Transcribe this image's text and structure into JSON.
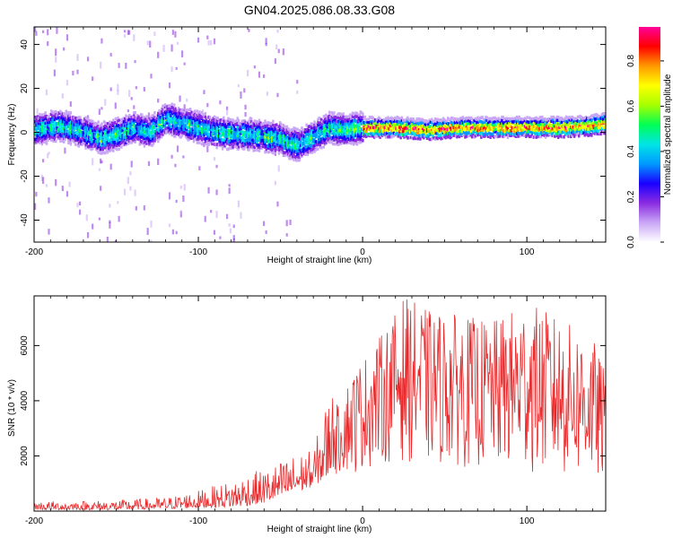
{
  "chart_data": [
    {
      "type": "heatmap",
      "title": "GN04.2025.086.08.33.G08",
      "xlabel": "Height of straight line (km)",
      "ylabel": "Frequency (Hz)",
      "xlim": [
        -200,
        148
      ],
      "ylim": [
        -50,
        48
      ],
      "xticks": [
        -200,
        -100,
        0,
        100
      ],
      "yticks": [
        -40,
        -20,
        0,
        20,
        40
      ],
      "colorbar": {
        "label": "Normalized spectral amplitude",
        "range": [
          0,
          0.95
        ],
        "ticks": [
          0.0,
          0.2,
          0.4,
          0.6,
          0.8
        ],
        "colors": [
          "#ffffff",
          "#c9a6f5",
          "#8a2be2",
          "#1a00ff",
          "#0099ff",
          "#00e5e5",
          "#00ff55",
          "#a6ff00",
          "#ffff00",
          "#ff9900",
          "#ff0000",
          "#ff0099"
        ]
      },
      "ridge": {
        "x": [
          -200,
          -185,
          -170,
          -160,
          -150,
          -140,
          -130,
          -120,
          -110,
          -100,
          -90,
          -80,
          -70,
          -60,
          -50,
          -45,
          -40,
          -35,
          -30,
          -25,
          -20,
          -15,
          -10,
          0,
          20,
          40,
          60,
          80,
          100,
          120,
          140,
          148
        ],
        "freq": [
          1,
          3,
          0,
          -3,
          -1,
          2,
          0,
          6,
          4,
          2,
          0,
          -1,
          -1,
          -2,
          -3,
          -5,
          -6,
          -4,
          -2,
          0,
          2,
          1,
          1,
          2,
          2,
          1,
          2,
          2,
          2,
          2,
          3,
          4
        ]
      }
    },
    {
      "type": "line",
      "xlabel": "Height of straight line (km)",
      "ylabel": "SNR (10 * v/v)",
      "xlim": [
        -200,
        148
      ],
      "ylim": [
        0,
        7800
      ],
      "xticks": [
        -200,
        -100,
        0,
        100
      ],
      "yticks": [
        2000,
        4000,
        6000
      ],
      "series": [
        {
          "color": "#e8292b",
          "envelope": {
            "x": [
              -200,
              -150,
              -120,
              -100,
              -80,
              -70,
              -60,
              -50,
              -40,
              -30,
              -20,
              -15,
              -10,
              -5,
              0,
              10,
              20,
              25,
              40,
              60,
              80,
              100,
              120,
              140,
              148
            ],
            "upper": [
              350,
              400,
              500,
              750,
              1100,
              1400,
              1500,
              1800,
              2100,
              2200,
              4500,
              3800,
              4600,
              5200,
              5500,
              6300,
              7200,
              7800,
              7300,
              7100,
              6900,
              7600,
              7000,
              6300,
              5000
            ],
            "lower": [
              50,
              50,
              80,
              120,
              150,
              200,
              300,
              500,
              700,
              900,
              1300,
              1300,
              1400,
              1300,
              1500,
              1700,
              1800,
              1800,
              1700,
              1600,
              1500,
              1400,
              1200,
              1100,
              1000
            ]
          }
        }
      ]
    }
  ]
}
